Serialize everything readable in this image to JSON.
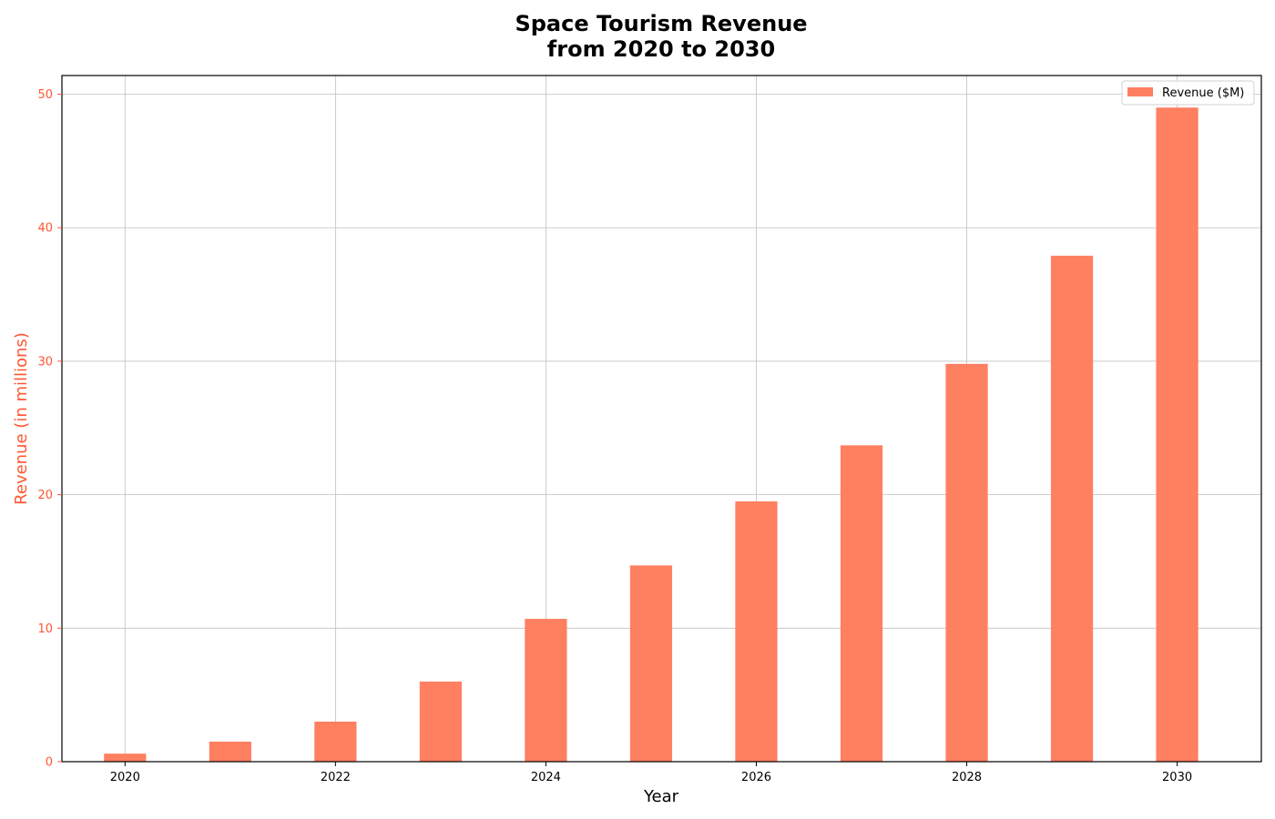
{
  "chart_data": {
    "type": "bar",
    "title_lines": [
      "Space Tourism Revenue",
      "from 2020 to 2030"
    ],
    "xlabel": "Year",
    "ylabel": "Revenue (in millions)",
    "categories": [
      2020,
      2021,
      2022,
      2023,
      2024,
      2025,
      2026,
      2027,
      2028,
      2029,
      2030
    ],
    "x_tick_labels": [
      "2020",
      "2022",
      "2024",
      "2026",
      "2028",
      "2030"
    ],
    "y_tick_labels": [
      "0",
      "10",
      "20",
      "30",
      "40",
      "50"
    ],
    "series": [
      {
        "name": "Revenue ($M)",
        "values": [
          0.6,
          1.5,
          3.0,
          6.0,
          10.7,
          14.7,
          19.5,
          23.7,
          29.8,
          37.9,
          49.0
        ]
      }
    ],
    "xlim": [
      2019.4,
      2030.8
    ],
    "ylim": [
      0,
      51.4
    ],
    "grid": true,
    "legend_position": "top-right",
    "colors": {
      "bar": "#FF7F61",
      "ylabel": "#FF5733",
      "yticks": "#FF5733",
      "grid": "#c0c0c0",
      "axes": "#000000"
    }
  }
}
